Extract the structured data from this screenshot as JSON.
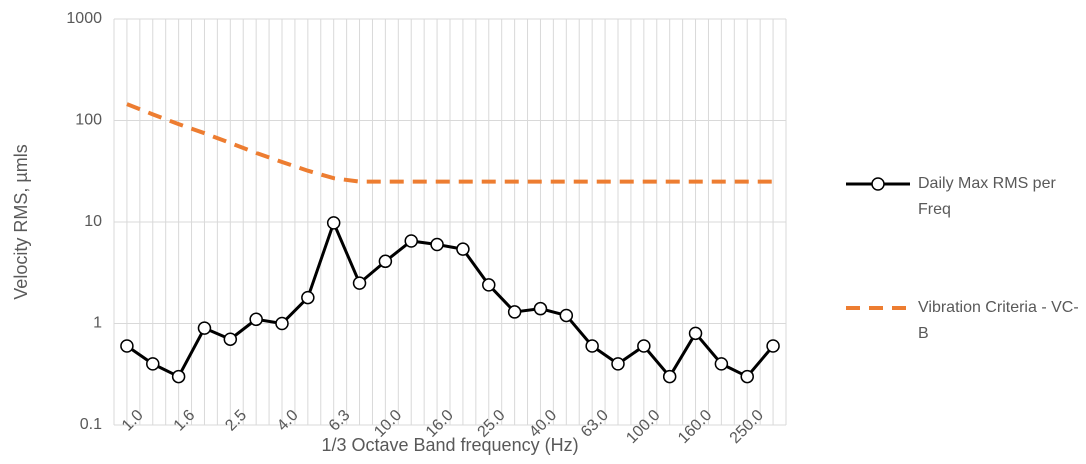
{
  "chart_data": {
    "type": "line",
    "x_label": "1/3 Octave Band frequency (Hz)",
    "y_label": "Velocity RMS, µmls",
    "categories": [
      "1.0",
      null,
      "1.6",
      null,
      "2.5",
      null,
      "4.0",
      null,
      "6.3",
      null,
      "10.0",
      null,
      "16.0",
      null,
      "25.0",
      null,
      "40.0",
      null,
      "63.0",
      null,
      "100.0",
      null,
      "160.0",
      null,
      "250.0",
      null
    ],
    "series": [
      {
        "name": "Daily Max RMS per Freq",
        "color": "#000000",
        "style": "solid",
        "marker": true,
        "values": [
          0.6,
          0.4,
          0.3,
          0.9,
          0.7,
          1.1,
          1.0,
          1.8,
          9.8,
          2.5,
          4.1,
          6.5,
          6.0,
          5.4,
          2.4,
          1.3,
          1.4,
          1.2,
          0.6,
          0.4,
          0.6,
          0.3,
          0.8,
          0.4,
          0.3,
          0.6
        ]
      },
      {
        "name": "Vibration Criteria - VC-B",
        "color": "#ED7D31",
        "style": "dashed",
        "marker": false,
        "values": [
          145,
          115,
          92,
          75,
          60,
          48,
          39,
          32,
          27,
          25,
          25,
          25,
          25,
          25,
          25,
          25,
          25,
          25,
          25,
          25,
          25,
          25,
          25,
          25,
          25,
          25
        ]
      }
    ],
    "log_y": true,
    "ylim": [
      0.1,
      1000
    ],
    "yticks": [
      0.1,
      1,
      10,
      100,
      1000
    ],
    "grid": true,
    "legend": "right"
  }
}
